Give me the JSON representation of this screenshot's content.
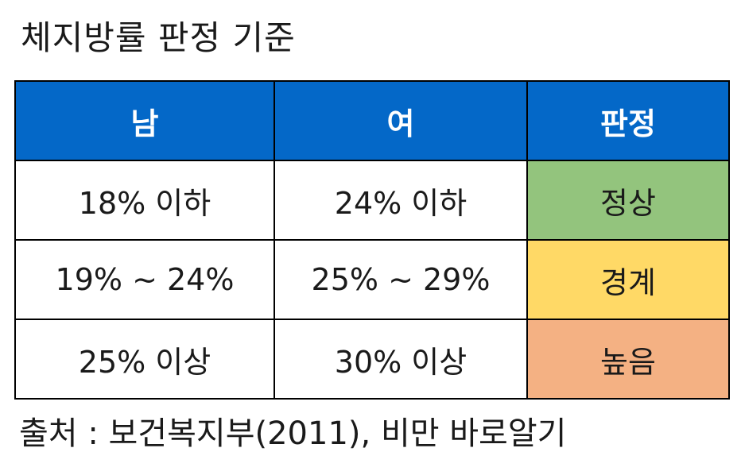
{
  "title": "체지방률 판정 기준",
  "colors": {
    "header_bg": "#0468C8",
    "normal": "#93C47D",
    "borderline": "#FFD966",
    "high": "#F4B183"
  },
  "table": {
    "headers": [
      "남",
      "여",
      "판정"
    ],
    "rows": [
      {
        "male": "18% 이하",
        "female": "24% 이하",
        "judgment": "정상"
      },
      {
        "male": "19% ~ 24%",
        "female": "25% ~ 29%",
        "judgment": "경계"
      },
      {
        "male": "25% 이상",
        "female": "30% 이상",
        "judgment": "높음"
      }
    ]
  },
  "source": "출처 : 보건복지부(2011), 비만 바로알기"
}
